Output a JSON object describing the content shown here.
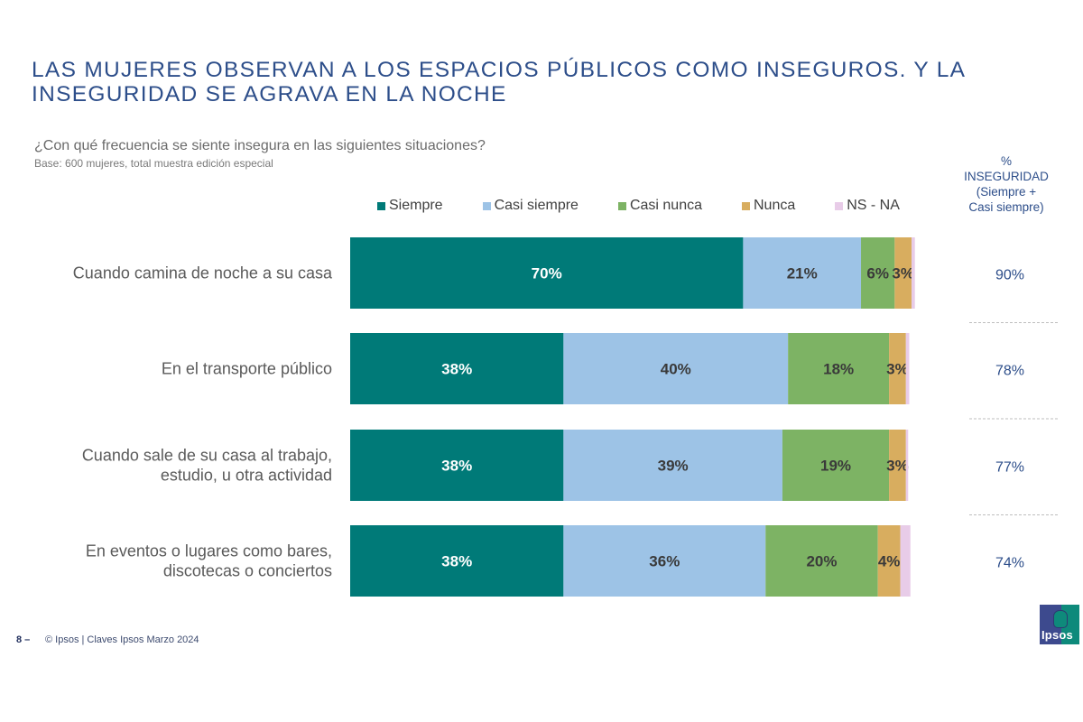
{
  "page": {
    "title_line1": "LAS MUJERES OBSERVAN A LOS ESPACIOS PÚBLICOS COMO INSEGUROS. Y LA",
    "title_line2": "INSEGURIDAD SE AGRAVA EN LA NOCHE",
    "question": "¿Con qué frecuencia se siente insegura en las siguientes situaciones?",
    "base": "Base: 600 mujeres, total muestra edición especial",
    "side_header": [
      "%",
      "INSEGURIDAD",
      "(Siempre +",
      "Casi siempre)"
    ],
    "footer_page": "8 –",
    "footer_text": "© Ipsos | Claves Ipsos Marzo 2024",
    "logo_text": "Ipsos"
  },
  "colors": {
    "title": "#2d4e8a",
    "side_values": "#2d4e8a"
  },
  "chart_data": {
    "type": "bar",
    "orientation": "horizontal",
    "stacked": true,
    "title": "¿Con qué frecuencia se siente insegura en las siguientes situaciones?",
    "xlabel": "",
    "ylabel": "",
    "xlim": [
      0,
      100
    ],
    "grid": false,
    "legend_position": "top",
    "categories": [
      [
        "Cuando camina de noche a su casa"
      ],
      [
        "En el transporte público"
      ],
      [
        "Cuando sale de su casa al trabajo,",
        "estudio, u otra actividad"
      ],
      [
        "En eventos o lugares como bares,",
        "discotecas o conciertos"
      ]
    ],
    "series": [
      {
        "name": "Siempre",
        "color": "#007a78",
        "label_color": "#ffffff",
        "values": [
          70,
          38,
          38,
          38
        ],
        "labels": [
          "70%",
          "38%",
          "38%",
          "38%"
        ]
      },
      {
        "name": "Casi siempre",
        "color": "#9dc3e6",
        "label_color": "#3a3a3a",
        "values": [
          21,
          40,
          39,
          36
        ],
        "labels": [
          "21%",
          "40%",
          "39%",
          "36%"
        ]
      },
      {
        "name": "Casi nunca",
        "color": "#7db364",
        "label_color": "#3a3a3a",
        "values": [
          6,
          18,
          19,
          20
        ],
        "labels": [
          "6%",
          "18%",
          "19%",
          "20%"
        ]
      },
      {
        "name": "Nunca",
        "color": "#d8ad5f",
        "label_color": "#3a3a3a",
        "values": [
          3,
          3,
          3,
          4
        ],
        "labels": [
          "3%",
          "3%",
          "3%",
          "4%"
        ]
      },
      {
        "name": "NS - NA",
        "color": "#e8cce8",
        "label_color": "#3a3a3a",
        "values": [
          0.6,
          0.6,
          0.4,
          1.8
        ],
        "labels": [
          "",
          "",
          "",
          ""
        ]
      }
    ],
    "side_column": {
      "header": "% INSEGURIDAD (Siempre + Casi siempre)",
      "values": [
        "90%",
        "78%",
        "77%",
        "74%"
      ]
    }
  }
}
